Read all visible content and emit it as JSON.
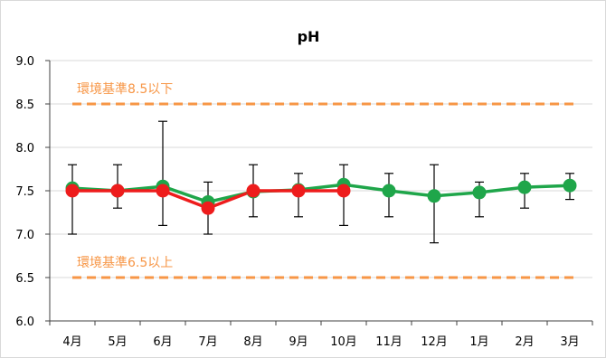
{
  "chart_data": {
    "type": "line",
    "title": "pH",
    "xlabel": "",
    "ylabel": "",
    "categories": [
      "4月",
      "5月",
      "6月",
      "7月",
      "8月",
      "9月",
      "10月",
      "11月",
      "12月",
      "1月",
      "2月",
      "3月"
    ],
    "ylim": [
      6.0,
      9.0
    ],
    "yticks": [
      6.0,
      6.5,
      7.0,
      7.5,
      8.0,
      8.5,
      9.0
    ],
    "ytick_labels": [
      "6.0",
      "6.5",
      "7.0",
      "7.5",
      "8.0",
      "8.5",
      "9.0"
    ],
    "grid": true,
    "legend": "none",
    "series": [
      {
        "color": "#1fa64a",
        "values": [
          7.53,
          7.5,
          7.55,
          7.37,
          7.49,
          7.51,
          7.57,
          7.5,
          7.44,
          7.48,
          7.54,
          7.56
        ],
        "error_min": [
          7.0,
          7.3,
          7.1,
          7.0,
          7.2,
          7.2,
          7.1,
          7.2,
          6.9,
          7.2,
          7.3,
          7.4
        ],
        "error_max": [
          7.8,
          7.8,
          8.3,
          7.6,
          7.8,
          7.7,
          7.8,
          7.7,
          7.8,
          7.6,
          7.7,
          7.7
        ]
      },
      {
        "color": "#ee1c1c",
        "values": [
          7.5,
          7.5,
          7.5,
          7.3,
          7.5,
          7.5,
          7.5,
          null,
          null,
          null,
          null,
          null
        ]
      }
    ],
    "reference_lines": [
      {
        "value": 8.5,
        "label": "環境基準8.5以下",
        "color": "#f79646"
      },
      {
        "value": 6.5,
        "label": "環境基準6.5以上",
        "color": "#f79646"
      }
    ]
  }
}
